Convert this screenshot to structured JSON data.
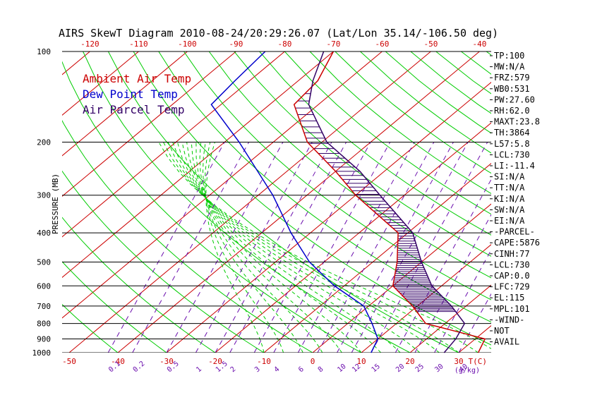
{
  "title": "AIRS SkewT Diagram 2010-08-24/20:29:26.07 (Lat/Lon 35.14/-106.50 deg)",
  "ylabel": "PRESSURE (MB)",
  "xlabel_bottom": "T(C)",
  "mix_unit": "(g/kg)",
  "legend": [
    {
      "label": "Ambient Air Temp",
      "color": "#cc0000"
    },
    {
      "label": "Dew Point Temp",
      "color": "#0000cc"
    },
    {
      "label": "Air Parcel Temp",
      "color": "#330066"
    }
  ],
  "pressure_ticks": [
    "100",
    "200",
    "300",
    "400",
    "500",
    "600",
    "700",
    "800",
    "900",
    "1000"
  ],
  "temp_ticks_top": [
    "-120",
    "-110",
    "-100",
    "-90",
    "-80",
    "-70",
    "-60",
    "-50",
    "-40"
  ],
  "temp_ticks_bottom": [
    "-50",
    "-40",
    "-30",
    "-20",
    "-10",
    "0",
    "10",
    "20",
    "30"
  ],
  "mixing_ratio_labels": [
    "0.1",
    "0.2",
    "0.5",
    "1",
    "1.5",
    "2",
    "3",
    "4",
    "6",
    "8",
    "10",
    "12",
    "15",
    "20",
    "25",
    "30",
    "40"
  ],
  "indices": [
    "TP:100",
    "MW:N/A",
    "FRZ:579",
    "WB0:531",
    "PW:27.60",
    "RH:62.0",
    "MAXT:23.8",
    "TH:3864",
    "L57:5.8",
    "LCL:730",
    "LI:-11.4",
    "SI:N/A",
    "TT:N/A",
    "KI:N/A",
    "SW:N/A",
    "EI:N/A",
    "-PARCEL-",
    "CAPE:5876",
    "CINH:77",
    "LCL:730",
    "CAP:0.0",
    "LFC:729",
    "EL:115",
    "MPL:101",
    "-WIND-",
    "NOT",
    "AVAIL"
  ],
  "colors": {
    "temp": "#cc0000",
    "dewpoint": "#0000cc",
    "parcel": "#330066",
    "isotherm": "#cc0000",
    "dry_adiabat": "#00cc00",
    "mixing_ratio": "#6a0dad",
    "moist_adiabat": "#00cc00"
  },
  "chart_data": {
    "type": "line",
    "y_axis": "pressure (mb), log scale, decreasing upward",
    "ylim": [
      1000,
      100
    ],
    "xlim_bottom_C": [
      -50,
      30
    ],
    "series": [
      {
        "name": "Ambient Air Temp",
        "points": [
          [
            1000,
            34
          ],
          [
            900,
            32
          ],
          [
            800,
            16
          ],
          [
            700,
            9
          ],
          [
            600,
            0
          ],
          [
            500,
            -5
          ],
          [
            400,
            -12
          ],
          [
            300,
            -30
          ],
          [
            250,
            -40
          ],
          [
            200,
            -53
          ],
          [
            150,
            -65
          ],
          [
            125,
            -66
          ],
          [
            100,
            -70
          ]
        ]
      },
      {
        "name": "Dew Point Temp",
        "points": [
          [
            1000,
            12
          ],
          [
            900,
            10
          ],
          [
            800,
            5
          ],
          [
            700,
            -1
          ],
          [
            600,
            -12
          ],
          [
            500,
            -23
          ],
          [
            400,
            -34
          ],
          [
            300,
            -47
          ],
          [
            250,
            -56
          ],
          [
            200,
            -67
          ],
          [
            150,
            -82
          ],
          [
            125,
            -83
          ],
          [
            100,
            -84
          ]
        ]
      },
      {
        "name": "Air Parcel Temp",
        "points": [
          [
            1000,
            27
          ],
          [
            900,
            26
          ],
          [
            800,
            24
          ],
          [
            700,
            17
          ],
          [
            600,
            8
          ],
          [
            500,
            0
          ],
          [
            400,
            -9
          ],
          [
            300,
            -25
          ],
          [
            250,
            -35
          ],
          [
            200,
            -49
          ],
          [
            150,
            -62
          ],
          [
            125,
            -67
          ],
          [
            100,
            -72
          ]
        ]
      }
    ]
  }
}
